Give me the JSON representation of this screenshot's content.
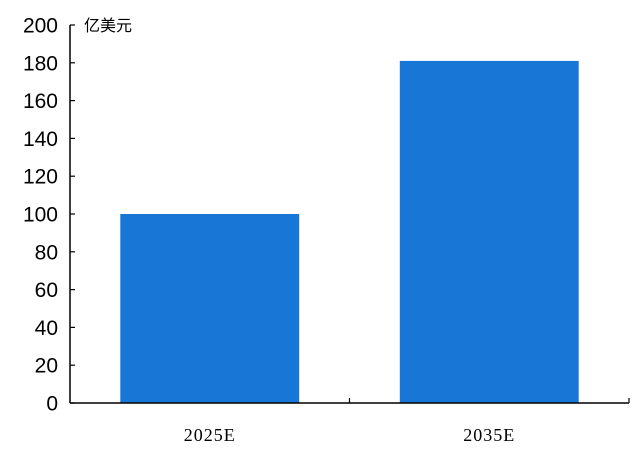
{
  "chart_data": {
    "type": "bar",
    "categories": [
      "2025E",
      "2035E"
    ],
    "values": [
      100,
      181
    ],
    "title": "",
    "xlabel": "",
    "ylabel": "亿美元",
    "ylim": [
      0,
      200
    ],
    "yticks": [
      0,
      20,
      40,
      60,
      80,
      100,
      120,
      140,
      160,
      180,
      200
    ],
    "grid": false,
    "bar_color": "#1877d6",
    "axis_color": "#000000"
  }
}
